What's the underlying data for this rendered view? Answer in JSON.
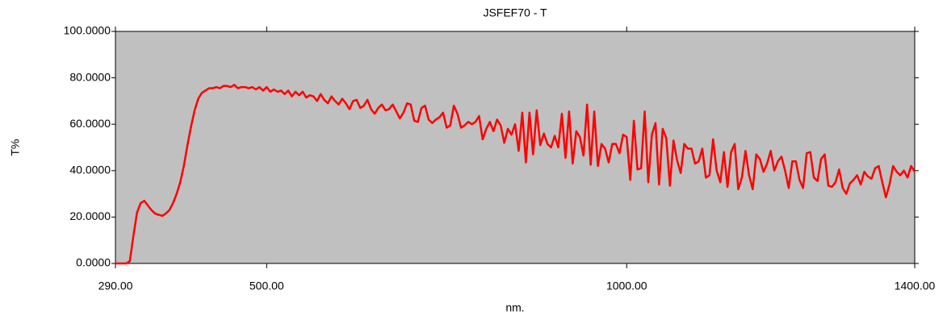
{
  "chart_data": {
    "type": "line",
    "title": "JSFEF70 - T",
    "x_label": "nm.",
    "y_label": "T%",
    "x": [
      290,
      295,
      300,
      305,
      310,
      315,
      320,
      325,
      330,
      335,
      340,
      345,
      350,
      355,
      360,
      365,
      370,
      375,
      380,
      385,
      390,
      395,
      400,
      405,
      410,
      415,
      420,
      425,
      430,
      435,
      440,
      445,
      450,
      455,
      460,
      465,
      470,
      475,
      480,
      485,
      490,
      495,
      500,
      505,
      510,
      515,
      520,
      525,
      530,
      535,
      540,
      545,
      550,
      555,
      560,
      565,
      570,
      575,
      580,
      585,
      590,
      595,
      600,
      605,
      610,
      615,
      620,
      625,
      630,
      635,
      640,
      645,
      650,
      655,
      660,
      665,
      670,
      675,
      680,
      685,
      690,
      695,
      700,
      705,
      710,
      715,
      720,
      725,
      730,
      735,
      740,
      745,
      750,
      755,
      760,
      765,
      770,
      775,
      780,
      785,
      790,
      795,
      800,
      805,
      810,
      815,
      820,
      825,
      830,
      835,
      840,
      845,
      850,
      855,
      860,
      865,
      870,
      875,
      880,
      885,
      890,
      895,
      900,
      905,
      910,
      915,
      920,
      925,
      930,
      935,
      940,
      945,
      950,
      955,
      960,
      965,
      970,
      975,
      980,
      985,
      990,
      995,
      1000,
      1005,
      1010,
      1015,
      1020,
      1025,
      1030,
      1035,
      1040,
      1045,
      1050,
      1055,
      1060,
      1065,
      1070,
      1075,
      1080,
      1085,
      1090,
      1095,
      1100,
      1105,
      1110,
      1115,
      1120,
      1125,
      1130,
      1135,
      1140,
      1145,
      1150,
      1155,
      1160,
      1165,
      1170,
      1175,
      1180,
      1185,
      1190,
      1195,
      1200,
      1205,
      1210,
      1215,
      1220,
      1225,
      1230,
      1235,
      1240,
      1245,
      1250,
      1255,
      1260,
      1265,
      1270,
      1275,
      1280,
      1285,
      1290,
      1295,
      1300,
      1305,
      1310,
      1315,
      1320,
      1325,
      1330,
      1335,
      1340,
      1345,
      1350,
      1355,
      1360,
      1365,
      1370,
      1375,
      1380,
      1385,
      1390,
      1395,
      1400
    ],
    "series": [
      {
        "name": "JSFEF70 - T",
        "color": "#ff0000",
        "values": [
          0,
          0,
          0,
          0,
          1,
          12,
          22,
          26,
          27,
          25,
          23,
          21.5,
          21,
          20.5,
          21.5,
          23,
          26,
          30,
          35,
          42,
          51,
          59,
          66,
          71,
          73.5,
          74.5,
          75.5,
          75.5,
          76,
          75.5,
          76.5,
          76.5,
          76,
          77,
          75.5,
          76,
          76,
          75.5,
          76,
          75,
          76,
          74.5,
          76,
          74,
          75,
          74,
          74.5,
          73,
          74.5,
          72,
          74,
          72.5,
          74,
          71.5,
          72.5,
          72,
          70,
          73,
          70.5,
          69,
          72,
          70,
          68.5,
          71,
          69,
          66.5,
          70,
          70.5,
          67,
          68,
          70.5,
          66.5,
          64.5,
          67,
          68.5,
          66,
          66.5,
          68.5,
          65.5,
          62.5,
          65,
          69,
          68.5,
          61.5,
          61,
          67,
          68,
          62,
          60.5,
          62,
          63,
          65,
          58.5,
          59.5,
          68,
          64.5,
          58.5,
          59.5,
          61,
          60,
          61,
          63.5,
          53.5,
          58,
          61,
          57,
          62,
          59.5,
          52,
          58,
          55.5,
          60,
          48.5,
          65,
          43.5,
          65,
          47,
          66,
          51,
          56,
          51.5,
          50,
          55,
          50,
          64.5,
          45.5,
          65.5,
          43,
          57,
          54.5,
          46.5,
          68.5,
          42.5,
          65.5,
          42,
          51.5,
          49.5,
          43.5,
          51.5,
          51.5,
          47.5,
          55.5,
          54.5,
          36,
          61.5,
          40.5,
          41,
          65.5,
          35,
          55.5,
          60.5,
          34,
          58,
          54,
          33.5,
          53,
          44.5,
          39,
          51.5,
          49.5,
          49.5,
          43,
          44,
          49.5,
          37,
          38,
          53.5,
          40,
          35,
          48,
          33,
          48,
          51.5,
          32,
          37,
          48.5,
          38,
          32,
          47,
          45,
          39.5,
          43,
          48.5,
          40,
          44,
          46,
          40,
          32.5,
          44,
          44,
          36,
          32.5,
          47.5,
          48,
          37,
          35.5,
          45,
          47,
          33.5,
          33,
          35,
          40.5,
          32.5,
          30,
          34.5,
          36,
          38,
          34,
          39.5,
          37.5,
          36.5,
          41,
          42,
          35,
          28.5,
          34,
          42,
          39.5,
          38,
          40,
          37,
          42,
          39.5
        ]
      }
    ],
    "xlim": [
      290,
      1400
    ],
    "xticks": [
      {
        "value": 290,
        "label": "290.00"
      },
      {
        "value": 500,
        "label": "500.00"
      },
      {
        "value": 1000,
        "label": "1000.00"
      },
      {
        "value": 1400,
        "label": "1400.00"
      }
    ],
    "ylim": [
      0,
      100
    ],
    "yticks": [
      {
        "value": 0,
        "label": "0.0000"
      },
      {
        "value": 20,
        "label": "20.0000"
      },
      {
        "value": 40,
        "label": "40.0000"
      },
      {
        "value": 60,
        "label": "60.0000"
      },
      {
        "value": 80,
        "label": "80.0000"
      },
      {
        "value": 100,
        "label": "100.0000"
      }
    ],
    "plot_background": "#c0c0c0"
  }
}
